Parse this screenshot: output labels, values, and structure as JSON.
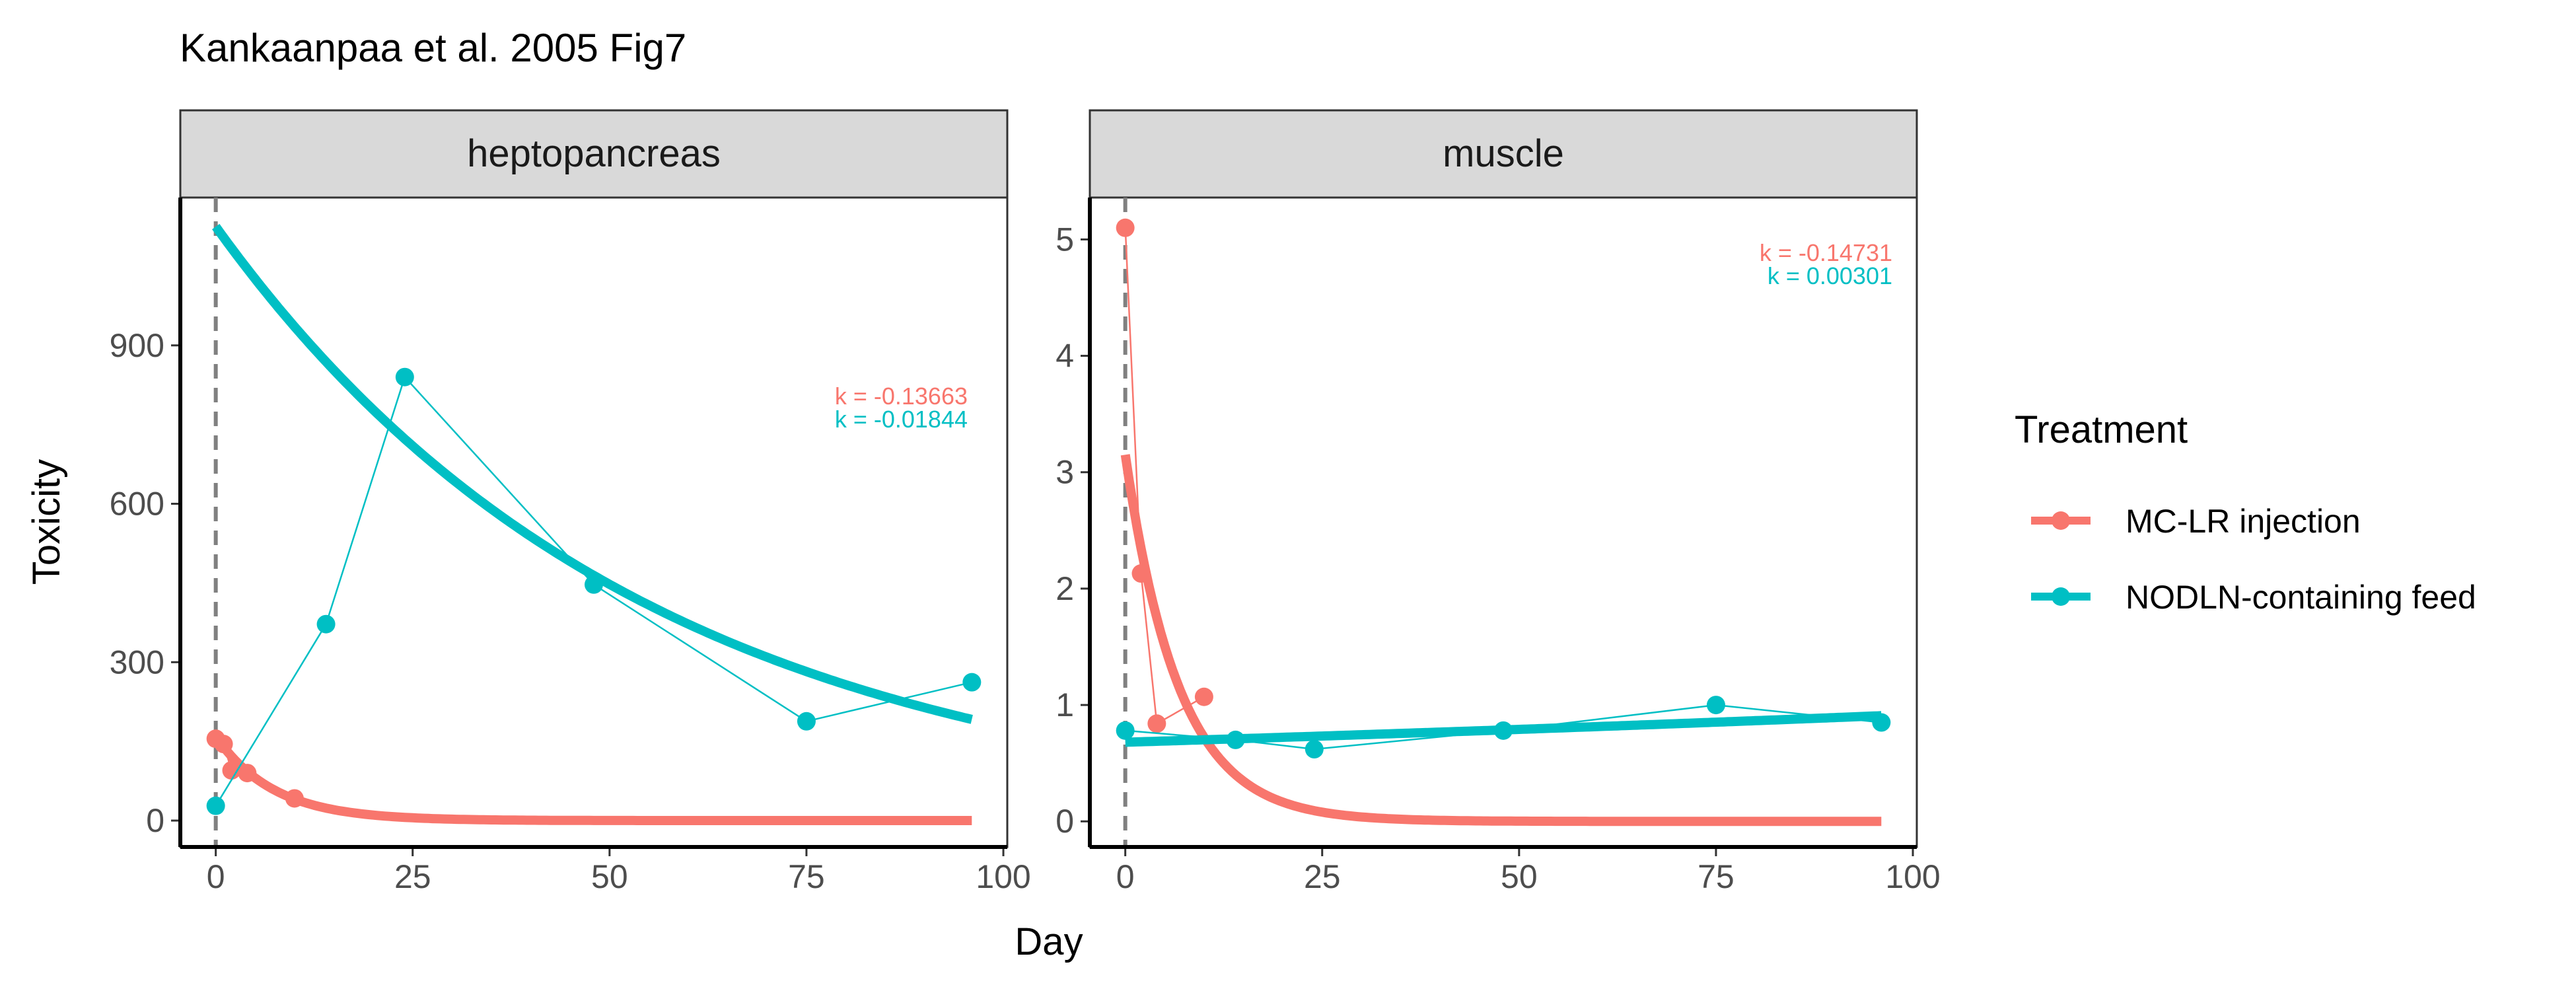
{
  "chart_data": {
    "type": "line",
    "title": "Kankaanpaa et al. 2005 Fig7",
    "xlabel": "Day",
    "ylabel": "Toxicity",
    "x_ticks": [
      0,
      25,
      50,
      75,
      100
    ],
    "xlim": [
      -4.5,
      100.5
    ],
    "grid": false,
    "legend_position": "right",
    "legend": {
      "title": "Treatment",
      "entries": [
        {
          "name": "MC-LR injection",
          "color": "#F8766D"
        },
        {
          "name": "NODLN-containing feed",
          "color": "#00BFC4"
        }
      ]
    },
    "panels": [
      {
        "strip": "heptopancreas",
        "ylim": [
          -50,
          1180
        ],
        "y_ticks": [
          0,
          300,
          600,
          900
        ],
        "series": [
          {
            "name": "MC-LR injection",
            "color": "#F8766D",
            "x": [
              0,
              1,
              2,
              4,
              10
            ],
            "y": [
              155,
              145,
              95,
              90,
              42
            ],
            "fit": {
              "a": 160,
              "k": -0.13663
            },
            "k_label": "k = -0.13663"
          },
          {
            "name": "NODLN-containing feed",
            "color": "#00BFC4",
            "x": [
              0,
              14,
              24,
              48,
              75,
              96
            ],
            "y": [
              28,
              372,
              840,
              447,
              188,
              262
            ],
            "fit": {
              "a": 1125,
              "k": -0.01844
            },
            "k_label": "k = -0.01844"
          }
        ]
      },
      {
        "strip": "muscle",
        "ylim": [
          -0.22,
          5.36
        ],
        "y_ticks": [
          0,
          1,
          2,
          3,
          4,
          5
        ],
        "series": [
          {
            "name": "MC-LR injection",
            "color": "#F8766D",
            "x": [
              0,
              2,
              4,
              10
            ],
            "y": [
              5.1,
              2.13,
              0.84,
              1.07
            ],
            "fit": {
              "a": 3.15,
              "k": -0.14731
            },
            "k_label": "k = -0.14731"
          },
          {
            "name": "NODLN-containing feed",
            "color": "#00BFC4",
            "x": [
              0,
              14,
              24,
              48,
              75,
              96
            ],
            "y": [
              0.78,
              0.7,
              0.62,
              0.78,
              1.0,
              0.85
            ],
            "fit": {
              "a": 0.68,
              "k": 0.00301
            },
            "k_label": "k = 0.00301"
          }
        ]
      }
    ]
  }
}
